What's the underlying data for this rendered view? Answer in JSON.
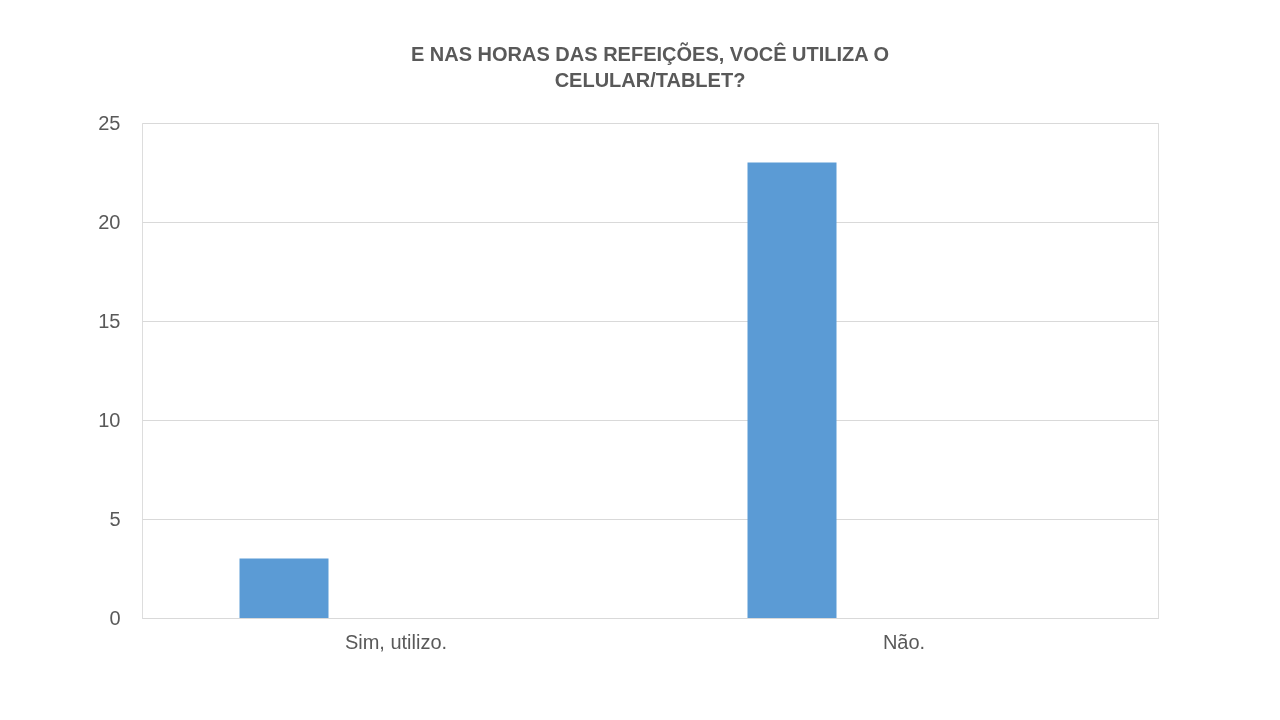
{
  "chart_data": {
    "type": "bar",
    "title": "E NAS HORAS DAS REFEIÇÕES, VOCÊ UTILIZA O CELULAR/TABLET?",
    "categories": [
      "Sim, utilizo.",
      "Não."
    ],
    "values": [
      3,
      23
    ],
    "color": "#5b9bd5",
    "ylim": [
      0,
      25
    ],
    "yticks": [
      0,
      5,
      10,
      15,
      20,
      25
    ],
    "grid": "y"
  }
}
